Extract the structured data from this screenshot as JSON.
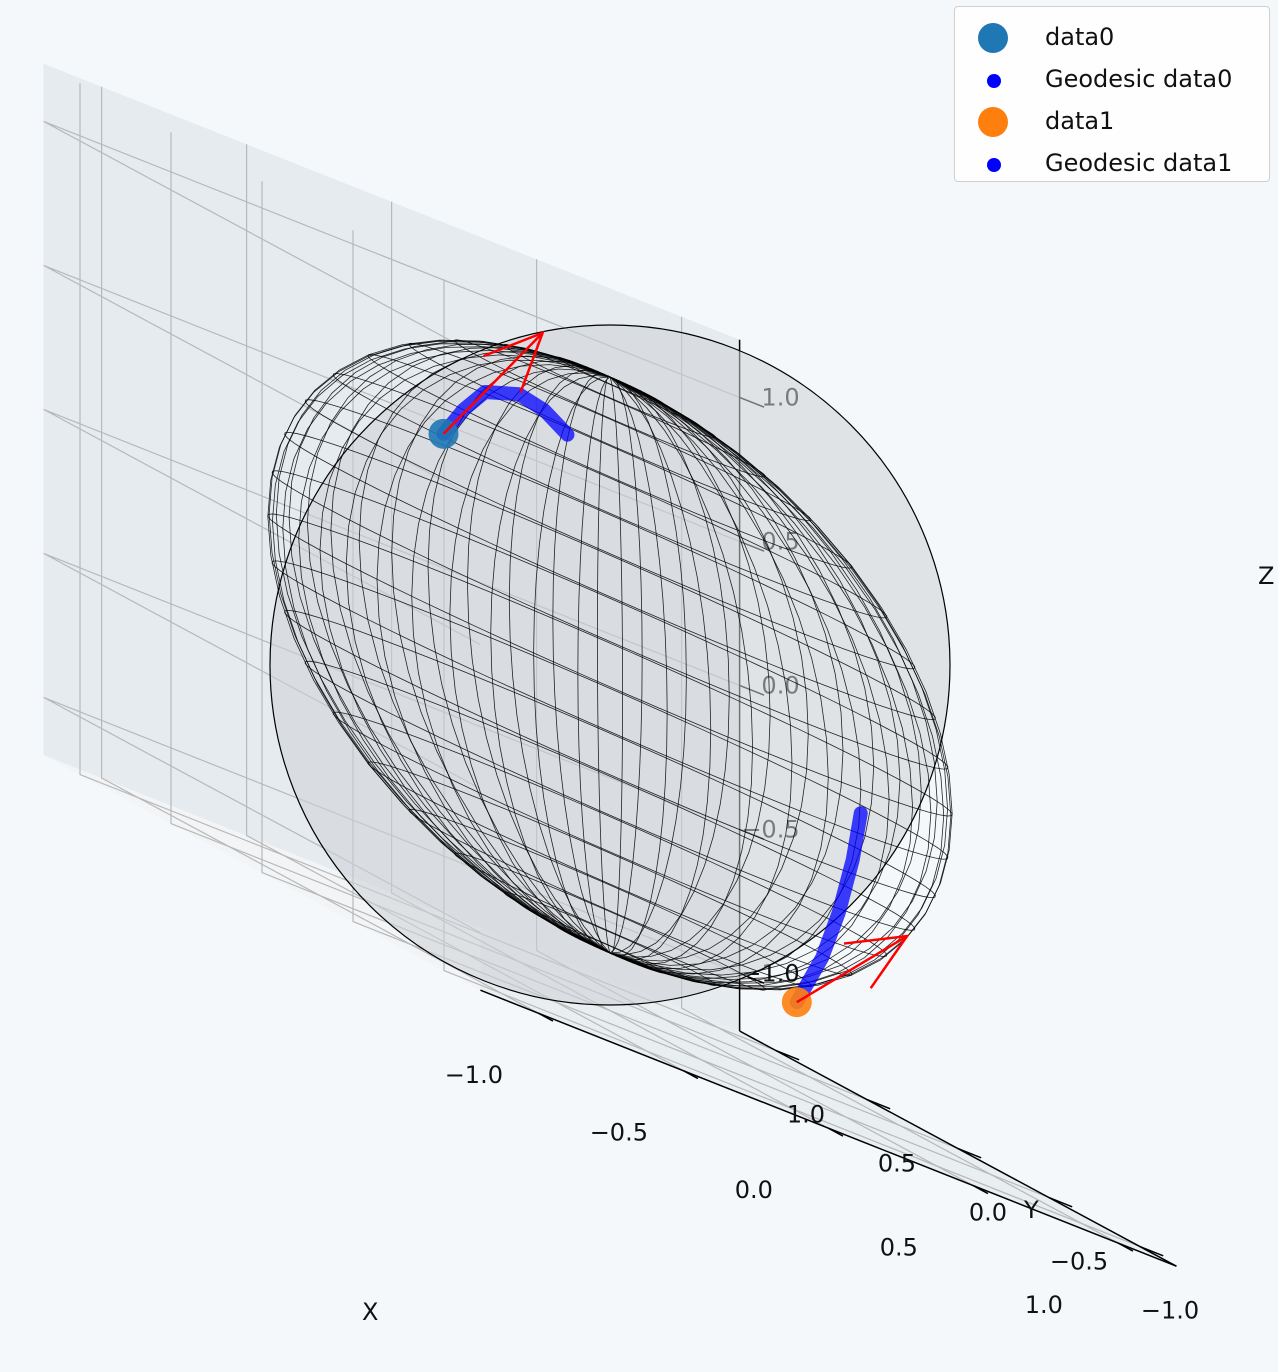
{
  "chart_data": {
    "type": "scatter",
    "projection": "3d",
    "axes": {
      "xlabel": "X",
      "ylabel": "Y",
      "zlabel": "Z",
      "xlim": [
        -1.2,
        1.2
      ],
      "ylim": [
        -1.2,
        1.2
      ],
      "zlim": [
        -1.2,
        1.2
      ],
      "x_ticks": [
        "−1.0",
        "−0.5",
        "0.0",
        "0.5",
        "1.0"
      ],
      "y_ticks": [
        "−1.0",
        "−0.5",
        "0.0",
        "0.5",
        "1.0"
      ],
      "z_ticks": [
        "−1.0",
        "−0.5",
        "0.0",
        "0.5",
        "1.0"
      ],
      "grid": true
    },
    "surface": {
      "kind": "unit-sphere-wireframe",
      "radius": 1.0,
      "color": "#000000"
    },
    "series": [
      {
        "name": "data0",
        "kind": "point",
        "color": "#1f77b4",
        "x": -0.48,
        "y": 0.15,
        "z": 0.56
      },
      {
        "name": "Geodesic data0",
        "kind": "geodesic",
        "color": "#0000ff",
        "points": [
          [
            -0.48,
            0.15,
            0.56
          ],
          [
            -0.35,
            0.25,
            0.66
          ],
          [
            -0.18,
            0.4,
            0.74
          ],
          [
            0.0,
            0.5,
            0.77
          ],
          [
            0.15,
            0.6,
            0.74
          ],
          [
            0.28,
            0.68,
            0.68
          ]
        ]
      },
      {
        "name": "data1",
        "kind": "point",
        "color": "#ff7f0e",
        "x": 0.55,
        "y": -0.15,
        "z": -0.9
      },
      {
        "name": "Geodesic data1",
        "kind": "geodesic",
        "color": "#0000ff",
        "points": [
          [
            0.55,
            -0.15,
            -0.9
          ],
          [
            0.7,
            -0.05,
            -0.72
          ],
          [
            0.82,
            0.05,
            -0.55
          ],
          [
            0.9,
            0.1,
            -0.35
          ],
          [
            0.94,
            0.12,
            -0.18
          ]
        ]
      }
    ],
    "vectors": [
      {
        "color": "#ff0000",
        "from": [
          -0.48,
          0.15,
          0.56
        ],
        "to": [
          0.05,
          0.45,
          1.02
        ]
      },
      {
        "color": "#ff0000",
        "from": [
          0.55,
          -0.15,
          -0.9
        ],
        "to": [
          1.15,
          0.2,
          -0.55
        ]
      }
    ],
    "legend": {
      "position": "top-right",
      "entries": [
        "data0",
        "Geodesic data0",
        "data1",
        "Geodesic data1"
      ]
    }
  },
  "legend_colors": [
    "#1f77b4",
    "#0000ff",
    "#ff7f0e",
    "#0000ff"
  ]
}
